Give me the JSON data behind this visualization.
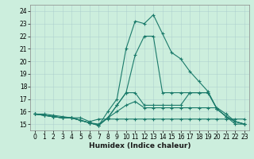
{
  "xlabel": "Humidex (Indice chaleur)",
  "ylabel": "",
  "xlim": [
    -0.5,
    23.5
  ],
  "ylim": [
    14.5,
    24.5
  ],
  "yticks": [
    15,
    16,
    17,
    18,
    19,
    20,
    21,
    22,
    23,
    24
  ],
  "xticks": [
    0,
    1,
    2,
    3,
    4,
    5,
    6,
    7,
    8,
    9,
    10,
    11,
    12,
    13,
    14,
    15,
    16,
    17,
    18,
    19,
    20,
    21,
    22,
    23
  ],
  "bg_color": "#cceedd",
  "line_color": "#1a7a6a",
  "series": [
    {
      "x": [
        0,
        1,
        2,
        3,
        4,
        5,
        6,
        7,
        8,
        9,
        10,
        11,
        12,
        13,
        14,
        15,
        16,
        17,
        18,
        19,
        20,
        21,
        22,
        23
      ],
      "y": [
        15.8,
        15.8,
        15.7,
        15.6,
        15.5,
        15.5,
        15.2,
        15.4,
        15.4,
        15.4,
        15.4,
        15.4,
        15.4,
        15.4,
        15.4,
        15.4,
        15.4,
        15.4,
        15.4,
        15.4,
        15.4,
        15.4,
        15.4,
        15.4
      ]
    },
    {
      "x": [
        0,
        1,
        2,
        3,
        4,
        5,
        6,
        7,
        8,
        9,
        10,
        11,
        12,
        13,
        14,
        15,
        16,
        17,
        18,
        19,
        20,
        21,
        22,
        23
      ],
      "y": [
        15.8,
        15.7,
        15.6,
        15.5,
        15.5,
        15.3,
        15.1,
        15.0,
        15.5,
        16.0,
        16.5,
        16.8,
        16.3,
        16.3,
        16.3,
        16.3,
        16.3,
        16.3,
        16.3,
        16.3,
        16.3,
        15.8,
        15.2,
        15.0
      ]
    },
    {
      "x": [
        0,
        1,
        2,
        3,
        4,
        5,
        6,
        7,
        8,
        9,
        10,
        11,
        12,
        13,
        14,
        15,
        16,
        17,
        18,
        19,
        20,
        21,
        22,
        23
      ],
      "y": [
        15.8,
        15.7,
        15.6,
        15.5,
        15.5,
        15.3,
        15.1,
        14.9,
        15.5,
        16.5,
        17.5,
        17.5,
        16.5,
        16.5,
        16.5,
        16.5,
        16.5,
        17.5,
        17.5,
        17.5,
        16.2,
        15.6,
        15.2,
        15.0
      ]
    },
    {
      "x": [
        0,
        1,
        2,
        3,
        4,
        5,
        6,
        7,
        8,
        9,
        10,
        11,
        12,
        13,
        14,
        15,
        16,
        17,
        18,
        19,
        20,
        21,
        22,
        23
      ],
      "y": [
        15.8,
        15.7,
        15.6,
        15.5,
        15.5,
        15.3,
        15.1,
        14.9,
        15.5,
        16.5,
        17.5,
        20.5,
        22.0,
        22.0,
        17.5,
        17.5,
        17.5,
        17.5,
        17.5,
        17.5,
        16.2,
        15.6,
        15.2,
        15.0
      ]
    },
    {
      "x": [
        0,
        1,
        2,
        3,
        4,
        5,
        6,
        7,
        8,
        9,
        10,
        11,
        12,
        13,
        14,
        15,
        16,
        17,
        18,
        19,
        20,
        21,
        22,
        23
      ],
      "y": [
        15.8,
        15.7,
        15.6,
        15.5,
        15.5,
        15.3,
        15.1,
        14.9,
        16.0,
        17.0,
        21.0,
        23.2,
        23.0,
        23.7,
        22.2,
        20.7,
        20.2,
        19.2,
        18.4,
        17.6,
        16.2,
        15.6,
        15.0,
        15.0
      ]
    }
  ]
}
